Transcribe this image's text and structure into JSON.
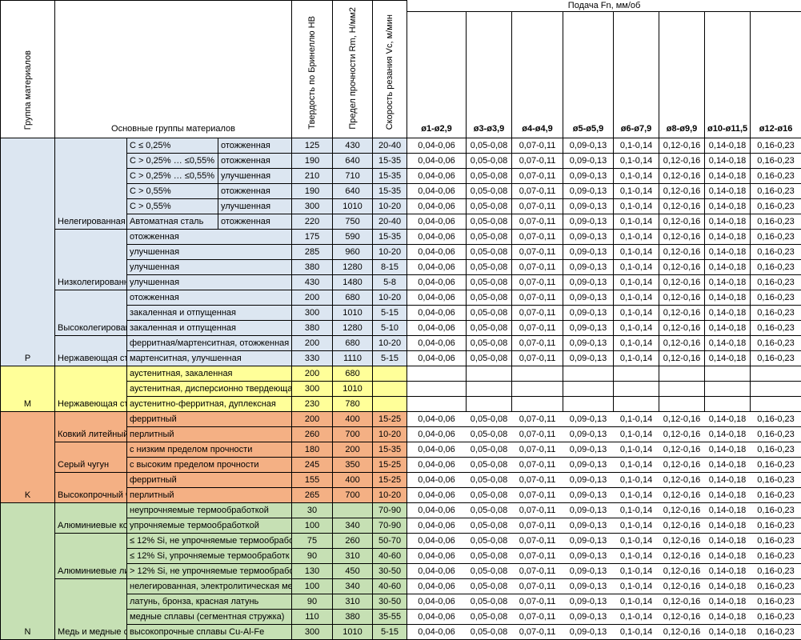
{
  "header": {
    "group_col": "Группа материалов",
    "main_groups": "Основные группы материалов",
    "hardness": "Твердость по Бринеллю HB",
    "strength": "Предел прочности Rm, Н/мм2",
    "speed": "Скорость резания Vc, м/мин",
    "feed_title": "Подача Fn, мм/об",
    "diameters": [
      "ø1-ø2,9",
      "ø3-ø3,9",
      "ø4-ø4,9",
      "ø5-ø5,9",
      "ø6-ø7,9",
      "ø8-ø9,9",
      "ø10-ø11,5",
      "ø12-ø16"
    ]
  },
  "feed_values": [
    "0,04-0,06",
    "0,05-0,08",
    "0,07-0,11",
    "0,09-0,13",
    "0,1-0,14",
    "0,12-0,16",
    "0,14-0,18",
    "0,16-0,23"
  ],
  "colors": {
    "P": "#dce6f1",
    "M": "#ffff99",
    "K": "#f4b084",
    "N": "#c6e0b4"
  },
  "groups": [
    {
      "letter": "P",
      "feed_lines": true,
      "subgroups": [
        {
          "label": "Нелегированная",
          "rows": [
            {
              "c2": "C ≤ 0,25%",
              "c3": "отожженная",
              "hb": "125",
              "rm": "430",
              "vc": "20-40",
              "feed": true
            },
            {
              "c2": "C > 0,25% … ≤0,55%",
              "c3": "отожженная",
              "hb": "190",
              "rm": "640",
              "vc": "15-35",
              "feed": true
            },
            {
              "c2": "C > 0,25% … ≤0,55%",
              "c3": "улучшенная",
              "hb": "210",
              "rm": "710",
              "vc": "15-35",
              "feed": true
            },
            {
              "c2": "C > 0,55%",
              "c3": "отожженная",
              "hb": "190",
              "rm": "640",
              "vc": "15-35",
              "feed": true
            },
            {
              "c2": "C > 0,55%",
              "c3": "улучшенная",
              "hb": "300",
              "rm": "1010",
              "vc": "10-20",
              "feed": true
            },
            {
              "c2": "Автоматная сталь",
              "c3": "отожженная",
              "hb": "220",
              "rm": "750",
              "vc": "20-40",
              "feed": true
            }
          ]
        },
        {
          "label": "Низколегированн",
          "rows": [
            {
              "c2": "отожженная",
              "hb": "175",
              "rm": "590",
              "vc": "15-35",
              "feed": true
            },
            {
              "c2": "улучшенная",
              "hb": "285",
              "rm": "960",
              "vc": "10-20",
              "feed": true
            },
            {
              "c2": "улучшенная",
              "hb": "380",
              "rm": "1280",
              "vc": "8-15",
              "feed": true
            },
            {
              "c2": "улучшенная",
              "hb": "430",
              "rm": "1480",
              "vc": "5-8",
              "feed": true
            }
          ]
        },
        {
          "label": "Высоколегирован",
          "rows": [
            {
              "c2": "отожженная",
              "hb": "200",
              "rm": "680",
              "vc": "10-20",
              "feed": true
            },
            {
              "c2": "закаленная и отпущенная",
              "hb": "300",
              "rm": "1010",
              "vc": "5-15",
              "feed": true
            },
            {
              "c2": "закаленная и отпущенная",
              "hb": "380",
              "rm": "1280",
              "vc": "5-10",
              "feed": true
            }
          ]
        },
        {
          "label": "Нержавеющая ст",
          "rows": [
            {
              "c2": "ферритная/мартенситная, отожженная",
              "hb": "200",
              "rm": "680",
              "vc": "10-20",
              "feed": true
            },
            {
              "c2": "мартенситная, улучшенная",
              "hb": "330",
              "rm": "1110",
              "vc": "5-15",
              "feed": true
            }
          ]
        }
      ]
    },
    {
      "letter": "M",
      "feed_lines": true,
      "subgroups": [
        {
          "label": "Нержавеющая ст",
          "rows": [
            {
              "c2": "аустенитная, закаленная",
              "hb": "200",
              "rm": "680",
              "vc": "",
              "feed": false
            },
            {
              "c2": "аустенитная, дисперсионно твердеюща",
              "hb": "300",
              "rm": "1010",
              "vc": "",
              "feed": false
            },
            {
              "c2": "аустенитно-ферритная, дуплексная",
              "hb": "230",
              "rm": "780",
              "vc": "",
              "feed": false
            }
          ]
        }
      ]
    },
    {
      "letter": "K",
      "feed_lines": false,
      "subgroups": [
        {
          "label": "Ковкий литейный",
          "rows": [
            {
              "c2": "ферритный",
              "hb": "200",
              "rm": "400",
              "vc": "15-25",
              "feed": true
            },
            {
              "c2": "перлитный",
              "hb": "260",
              "rm": "700",
              "vc": "10-20",
              "feed": true
            }
          ]
        },
        {
          "label": "Серый чугун",
          "rows": [
            {
              "c2": "с низким пределом прочности",
              "hb": "180",
              "rm": "200",
              "vc": "15-35",
              "feed": true
            },
            {
              "c2": "с высоким пределом прочности",
              "hb": "245",
              "rm": "350",
              "vc": "15-25",
              "feed": true
            }
          ]
        },
        {
          "label": "Высокопрочный ч",
          "rows": [
            {
              "c2": "ферритный",
              "hb": "155",
              "rm": "400",
              "vc": "15-25",
              "feed": true
            },
            {
              "c2": "перлитный",
              "hb": "265",
              "rm": "700",
              "vc": "10-20",
              "feed": true
            }
          ]
        }
      ]
    },
    {
      "letter": "N",
      "feed_lines": false,
      "subgroups": [
        {
          "label": "Алюминиевые ко",
          "rows": [
            {
              "c2": "неупрочняемые термообработкой",
              "hb": "30",
              "rm": "",
              "vc": "70-90",
              "feed": true
            },
            {
              "c2": "упрочняемые термообработкой",
              "hb": "100",
              "rm": "340",
              "vc": "70-90",
              "feed": true
            }
          ]
        },
        {
          "label": "Алюминиевые ли",
          "rows": [
            {
              "c2": "≤ 12% Si, не упрочняемые термообрабо",
              "hb": "75",
              "rm": "260",
              "vc": "50-70",
              "feed": true
            },
            {
              "c2": "≤ 12% Si, упрочняемые термообработк",
              "hb": "90",
              "rm": "310",
              "vc": "40-60",
              "feed": true
            },
            {
              "c2": "> 12% Si, не упрочняемые термообрабо",
              "hb": "130",
              "rm": "450",
              "vc": "30-50",
              "feed": true
            }
          ]
        },
        {
          "label": "Медь и медные с",
          "rows": [
            {
              "c2": "нелегированная, электролитическая ме",
              "hb": "100",
              "rm": "340",
              "vc": "40-60",
              "feed": true
            },
            {
              "c2": "латунь, бронза, красная латунь",
              "hb": "90",
              "rm": "310",
              "vc": "30-50",
              "feed": true
            },
            {
              "c2": "медные сплавы (сегментная стружка)",
              "hb": "110",
              "rm": "380",
              "vc": "35-55",
              "feed": true
            },
            {
              "c2": "высокопрочные сплавы Cu-Al-Fe",
              "hb": "300",
              "rm": "1010",
              "vc": "5-15",
              "feed": true
            }
          ]
        }
      ]
    }
  ]
}
